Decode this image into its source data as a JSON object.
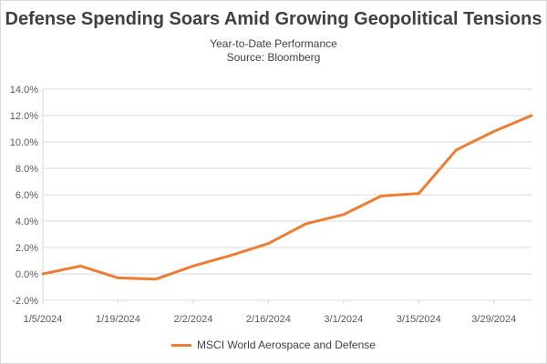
{
  "chart_data": {
    "type": "line",
    "title": "Defense Spending Soars Amid Growing Geopolitical Tensions",
    "subtitle": "Year-to-Date Performance",
    "source": "Source: Bloomberg",
    "xlabel": "",
    "ylabel": "",
    "x_ticks": [
      "1/5/2024",
      "1/19/2024",
      "2/2/2024",
      "2/16/2024",
      "3/1/2024",
      "3/15/2024",
      "3/29/2024"
    ],
    "y_ticks": [
      "14.0%",
      "12.0%",
      "10.0%",
      "8.0%",
      "6.0%",
      "4.0%",
      "2.0%",
      "0.0%",
      "-2.0%"
    ],
    "ylim": [
      -2.0,
      14.0
    ],
    "xlim": [
      "2024-01-05",
      "2024-04-05"
    ],
    "grid": true,
    "legend_position": "bottom",
    "series": [
      {
        "name": "MSCI World Aerospace and Defense",
        "color": "#ED7D31",
        "x": [
          "2024-01-05",
          "2024-01-12",
          "2024-01-19",
          "2024-01-26",
          "2024-02-02",
          "2024-02-09",
          "2024-02-16",
          "2024-02-23",
          "2024-03-01",
          "2024-03-08",
          "2024-03-15",
          "2024-03-22",
          "2024-03-29",
          "2024-04-05"
        ],
        "y": [
          0.0,
          0.6,
          -0.3,
          -0.4,
          0.6,
          1.4,
          2.3,
          3.8,
          4.5,
          5.9,
          6.1,
          9.4,
          10.8,
          12.0
        ]
      }
    ]
  }
}
